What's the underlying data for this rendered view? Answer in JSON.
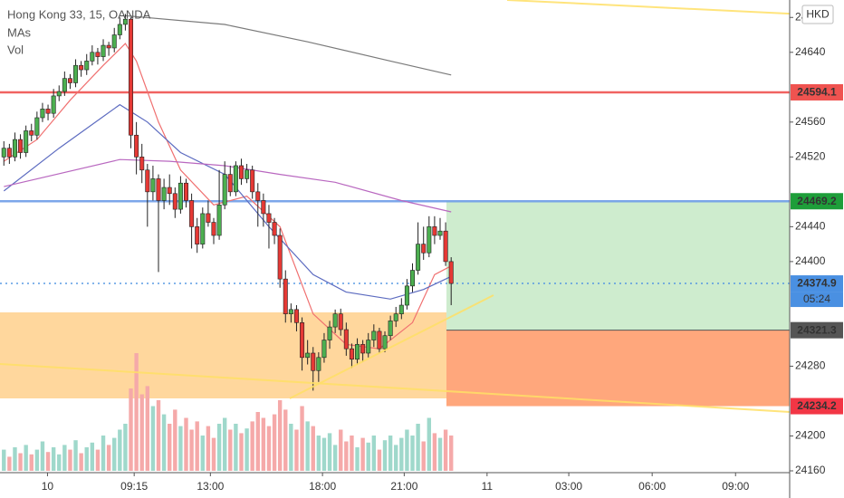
{
  "chart_data": {
    "type": "candlestick",
    "title": "Hong Kong 33, 15, OANDA",
    "indicators": [
      "MAs",
      "Vol"
    ],
    "currency": "HKD",
    "up_color": "#4caf50",
    "down_color": "#e53935",
    "volume_up_color": "#9fd8cb",
    "volume_down_color": "#f5a9a9",
    "xlim": [
      -0.7,
      142.3
    ],
    "ylim": [
      24160,
      24700
    ],
    "volume_lim": [
      0,
      100
    ],
    "yticks": [
      24160,
      24200,
      24280,
      24400,
      24440,
      24520,
      24560,
      24640,
      24680
    ],
    "xticks": [
      {
        "value": 7.9,
        "label": "10"
      },
      {
        "value": 23.6,
        "label": "09:15"
      },
      {
        "value": 37.4,
        "label": "13:00"
      },
      {
        "value": 57.7,
        "label": "18:00"
      },
      {
        "value": 72.5,
        "label": "21:00"
      },
      {
        "value": 87.5,
        "label": "11"
      },
      {
        "value": 102.3,
        "label": "03:00"
      },
      {
        "value": 117.4,
        "label": "06:00"
      },
      {
        "value": 132.5,
        "label": "09:00"
      }
    ],
    "ohlc": [
      [
        24520,
        24538,
        24510,
        24530
      ],
      [
        24530,
        24535,
        24512,
        24520
      ],
      [
        24520,
        24548,
        24515,
        24540
      ],
      [
        24540,
        24546,
        24518,
        24525
      ],
      [
        24525,
        24556,
        24520,
        24550
      ],
      [
        24550,
        24558,
        24538,
        24545
      ],
      [
        24545,
        24572,
        24540,
        24565
      ],
      [
        24565,
        24582,
        24560,
        24575
      ],
      [
        24575,
        24580,
        24562,
        24570
      ],
      [
        24570,
        24598,
        24565,
        24590
      ],
      [
        24590,
        24602,
        24584,
        24595
      ],
      [
        24595,
        24618,
        24590,
        24610
      ],
      [
        24610,
        24615,
        24598,
        24605
      ],
      [
        24605,
        24632,
        24600,
        24625
      ],
      [
        24625,
        24630,
        24612,
        24620
      ],
      [
        24620,
        24638,
        24614,
        24630
      ],
      [
        24630,
        24648,
        24625,
        24640
      ],
      [
        24640,
        24645,
        24626,
        24635
      ],
      [
        24635,
        24655,
        24630,
        24648
      ],
      [
        24648,
        24652,
        24636,
        24645
      ],
      [
        24645,
        24668,
        24640,
        24660
      ],
      [
        24660,
        24680,
        24655,
        24672
      ],
      [
        24672,
        24684,
        24665,
        24678
      ],
      [
        24678,
        24680,
        24530,
        24545
      ],
      [
        24545,
        24560,
        24500,
        24520
      ],
      [
        24520,
        24535,
        24490,
        24505
      ],
      [
        24505,
        24512,
        24440,
        24480
      ],
      [
        24480,
        24510,
        24470,
        24495
      ],
      [
        24495,
        24500,
        24388,
        24470
      ],
      [
        24470,
        24495,
        24460,
        24485
      ],
      [
        24485,
        24500,
        24465,
        24478
      ],
      [
        24478,
        24485,
        24450,
        24460
      ],
      [
        24460,
        24498,
        24455,
        24490
      ],
      [
        24490,
        24495,
        24462,
        24470
      ],
      [
        24470,
        24478,
        24415,
        24440
      ],
      [
        24440,
        24450,
        24410,
        24420
      ],
      [
        24420,
        24462,
        24415,
        24455
      ],
      [
        24455,
        24470,
        24440,
        24445
      ],
      [
        24445,
        24450,
        24420,
        24430
      ],
      [
        24430,
        24505,
        24425,
        24465
      ],
      [
        24465,
        24515,
        24460,
        24500
      ],
      [
        24500,
        24510,
        24475,
        24480
      ],
      [
        24480,
        24515,
        24475,
        24510
      ],
      [
        24510,
        24518,
        24488,
        24495
      ],
      [
        24495,
        24512,
        24490,
        24505
      ],
      [
        24505,
        24510,
        24472,
        24480
      ],
      [
        24480,
        24490,
        24440,
        24470
      ],
      [
        24470,
        24478,
        24440,
        24455
      ],
      [
        24455,
        24465,
        24415,
        24445
      ],
      [
        24445,
        24450,
        24420,
        24430
      ],
      [
        24430,
        24438,
        24370,
        24380
      ],
      [
        24380,
        24390,
        24330,
        24340
      ],
      [
        24340,
        24352,
        24330,
        24345
      ],
      [
        24345,
        24350,
        24320,
        24330
      ],
      [
        24330,
        24336,
        24275,
        24290
      ],
      [
        24290,
        24310,
        24282,
        24295
      ],
      [
        24295,
        24302,
        24252,
        24275
      ],
      [
        24275,
        24296,
        24262,
        24290
      ],
      [
        24290,
        24318,
        24284,
        24310
      ],
      [
        24310,
        24332,
        24300,
        24325
      ],
      [
        24325,
        24345,
        24318,
        24340
      ],
      [
        24340,
        24346,
        24315,
        24322
      ],
      [
        24322,
        24330,
        24292,
        24300
      ],
      [
        24300,
        24306,
        24278,
        24288
      ],
      [
        24288,
        24312,
        24282,
        24305
      ],
      [
        24305,
        24310,
        24285,
        24295
      ],
      [
        24295,
        24318,
        24290,
        24310
      ],
      [
        24310,
        24328,
        24302,
        24320
      ],
      [
        24320,
        24324,
        24295,
        24300
      ],
      [
        24300,
        24320,
        24296,
        24315
      ],
      [
        24315,
        24338,
        24310,
        24332
      ],
      [
        24332,
        24348,
        24325,
        24340
      ],
      [
        24340,
        24358,
        24334,
        24350
      ],
      [
        24350,
        24380,
        24345,
        24372
      ],
      [
        24372,
        24398,
        24365,
        24390
      ],
      [
        24390,
        24445,
        24385,
        24420
      ],
      [
        24420,
        24440,
        24402,
        24410
      ],
      [
        24410,
        24452,
        24405,
        24440
      ],
      [
        24440,
        24452,
        24420,
        24430
      ],
      [
        24430,
        24450,
        24425,
        24435
      ],
      [
        24435,
        24445,
        24395,
        24400
      ],
      [
        24400,
        24405,
        24350,
        24374.9
      ]
    ],
    "volume": [
      18,
      12,
      20,
      15,
      22,
      14,
      18,
      25,
      16,
      20,
      14,
      22,
      18,
      26,
      15,
      20,
      24,
      18,
      30,
      22,
      28,
      35,
      40,
      70,
      100,
      65,
      72,
      55,
      60,
      48,
      40,
      52,
      38,
      45,
      35,
      42,
      30,
      38,
      28,
      40,
      45,
      35,
      40,
      32,
      36,
      42,
      50,
      45,
      38,
      48,
      60,
      52,
      40,
      35,
      55,
      42,
      38,
      30,
      28,
      32,
      22,
      35,
      25,
      30,
      20,
      28,
      24,
      30,
      18,
      26,
      30,
      22,
      28,
      35,
      30,
      40,
      25,
      45,
      32,
      28,
      35,
      30
    ],
    "moving_averages": [
      {
        "color": "#f07070",
        "x": [
          0,
          6,
          12,
          18,
          22,
          24,
          28,
          32,
          38,
          44,
          50,
          56,
          62,
          68,
          74,
          78,
          81
        ],
        "values": [
          24515,
          24540,
          24585,
          24625,
          24650,
          24630,
          24560,
          24505,
          24465,
          24475,
          24440,
          24340,
          24305,
          24300,
          24330,
          24385,
          24395
        ]
      },
      {
        "color": "#5c6bc0",
        "x": [
          0,
          10,
          21,
          26,
          32,
          40,
          48,
          56,
          62,
          70,
          76,
          81
        ],
        "values": [
          24481,
          24530,
          24580,
          24560,
          24525,
          24500,
          24440,
          24385,
          24365,
          24357,
          24368,
          24383
        ]
      },
      {
        "color": "#b968c0",
        "x": [
          0,
          21,
          30,
          40,
          50,
          60,
          72,
          81
        ],
        "values": [
          24486,
          24517,
          24515,
          24510,
          24500,
          24491,
          24470,
          24457
        ]
      },
      {
        "color": "#7a7a7a",
        "x": [
          22,
          40,
          55,
          70,
          81
        ],
        "values": [
          24682,
          24672,
          24652,
          24630,
          24614
        ]
      }
    ],
    "price_levels": [
      {
        "value": 24594.1,
        "label_color": "#ef5350",
        "line": "solid",
        "line_color": "#ef5350"
      },
      {
        "value": 24469.2,
        "label_color": "#1e9e3a",
        "line": "solid",
        "line_color": "#6f9ee8"
      },
      {
        "value": 24374.9,
        "label_color": "#4a90e2",
        "line": "dotted",
        "line_color": "#4a90e2",
        "countdown": "05:24"
      },
      {
        "value": 24321.3,
        "label_color": "#555555"
      },
      {
        "value": 24234.2,
        "label_color": "#f23645"
      }
    ]
  }
}
